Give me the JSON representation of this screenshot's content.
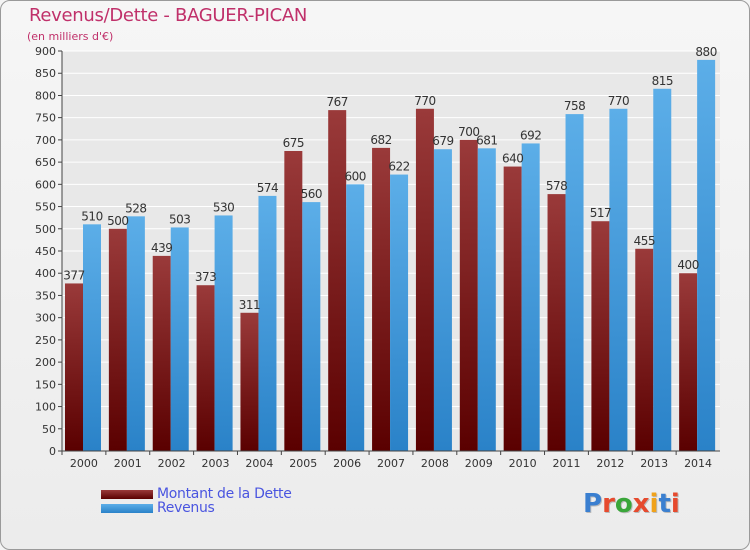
{
  "header": {
    "title": "Revenus/Dette - BAGUER-PICAN",
    "subtitle": "(en milliers d'€)"
  },
  "legend": {
    "debt_label": "Montant de la Dette",
    "revenue_label": "Revenus"
  },
  "brand": {
    "text": "Proxiti",
    "letter_colors": [
      "#3a7fd0",
      "#e64a2e",
      "#3aa63a",
      "#e64a2e",
      "#f0a21a",
      "#3a7fd0",
      "#e64a2e"
    ]
  },
  "colors": {
    "debt_light": "#9a3a3a",
    "debt_dark": "#5a0000",
    "revenue_light": "#5caee8",
    "revenue_dark": "#2a82c8",
    "grid": "#ffffff",
    "axis": "#444444",
    "plot_bg": "#e8e8e8"
  },
  "chart_data": {
    "type": "bar",
    "categories": [
      "2000",
      "2001",
      "2002",
      "2003",
      "2004",
      "2005",
      "2006",
      "2007",
      "2008",
      "2009",
      "2010",
      "2011",
      "2012",
      "2013",
      "2014"
    ],
    "series": [
      {
        "name": "Montant de la Dette",
        "values": [
          377,
          500,
          439,
          373,
          311,
          675,
          767,
          682,
          770,
          700,
          640,
          578,
          517,
          455,
          400
        ]
      },
      {
        "name": "Revenus",
        "values": [
          510,
          528,
          503,
          530,
          574,
          560,
          600,
          622,
          679,
          681,
          692,
          758,
          770,
          815,
          880
        ]
      }
    ],
    "ylim": [
      0,
      900
    ],
    "yticks": [
      0,
      50,
      100,
      150,
      200,
      250,
      300,
      350,
      400,
      450,
      500,
      550,
      600,
      650,
      700,
      750,
      800,
      850,
      900
    ],
    "grid": true,
    "legend_position": "bottom-left"
  }
}
